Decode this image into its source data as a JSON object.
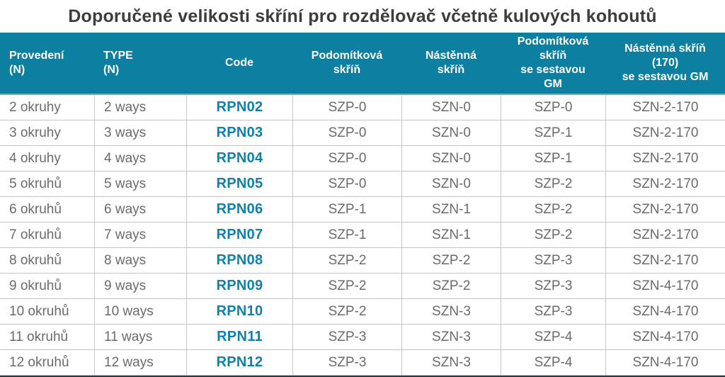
{
  "title": "Doporučené velikosti skříní pro rozdělovač včetně kulových kohoutů",
  "colors": {
    "header_bg": "#0d7fa1",
    "header_underline": "#5fb3cf",
    "header_text": "#ffffff",
    "code_text": "#0f81ab",
    "row_text": "#6b6b6b",
    "grid_line": "#c6c6c6",
    "title_text": "#3d3d3d",
    "bottom_bar": "#263d47"
  },
  "table": {
    "columns": [
      {
        "label": "Provedení\n(N)"
      },
      {
        "label": "TYPE\n(N)"
      },
      {
        "label": "Code"
      },
      {
        "label": "Podomítková\nskříň"
      },
      {
        "label": "Nástěnná\nskříň"
      },
      {
        "label": "Podomítková\nskříň\nse sestavou\nGM"
      },
      {
        "label": "Nástěnná skříň\n(170)\nse sestavou GM"
      }
    ],
    "rows": [
      [
        "2 okruhy",
        "2 ways",
        "RPN02",
        "SZP-0",
        "SZN-0",
        "SZP-0",
        "SZN-2-170"
      ],
      [
        "3 okruhy",
        "3 ways",
        "RPN03",
        "SZP-0",
        "SZN-0",
        "SZP-1",
        "SZN-2-170"
      ],
      [
        "4 okruhy",
        "4 ways",
        "RPN04",
        "SZP-0",
        "SZN-0",
        "SZP-1",
        "SZN-2-170"
      ],
      [
        "5 okruhů",
        "5 ways",
        "RPN05",
        "SZP-0",
        "SZN-0",
        "SZP-2",
        "SZN-2-170"
      ],
      [
        "6 okruhů",
        "6 ways",
        "RPN06",
        "SZP-1",
        "SZN-1",
        "SZP-2",
        "SZN-2-170"
      ],
      [
        "7 okruhů",
        "7 ways",
        "RPN07",
        "SZP-1",
        "SZN-1",
        "SZP-2",
        "SZN-2-170"
      ],
      [
        "8 okruhů",
        "8 ways",
        "RPN08",
        "SZP-2",
        "SZP-2",
        "SZP-3",
        "SZN-2-170"
      ],
      [
        "9 okruhů",
        "9 ways",
        "RPN09",
        "SZP-2",
        "SZP-2",
        "SZP-3",
        "SZN-4-170"
      ],
      [
        "10 okruhů",
        "10 ways",
        "RPN10",
        "SZP-2",
        "SZN-3",
        "SZP-3",
        "SZN-4-170"
      ],
      [
        "11 okruhů",
        "11 ways",
        "RPN11",
        "SZP-3",
        "SZN-3",
        "SZP-4",
        "SZN-4-170"
      ],
      [
        "12 okruhů",
        "12 ways",
        "RPN12",
        "SZP-3",
        "SZN-3",
        "SZP-4",
        "SZN-4-170"
      ]
    ]
  }
}
